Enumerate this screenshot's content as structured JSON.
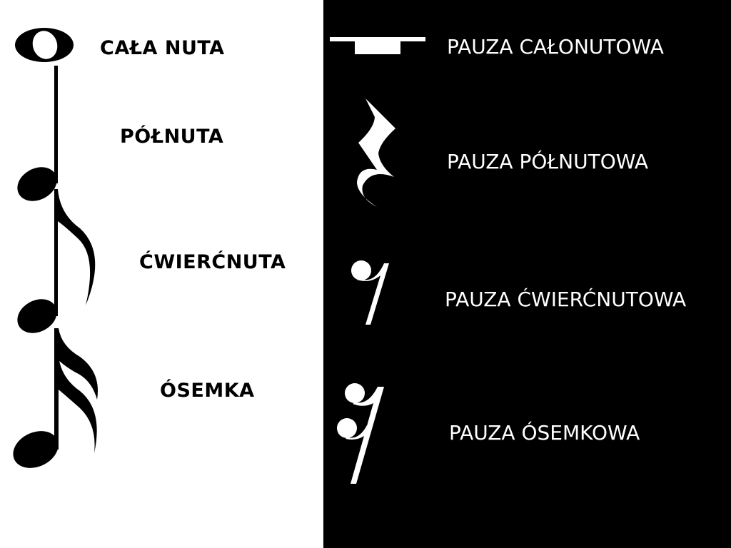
{
  "notes": [
    {
      "label": "CAŁA NUTA",
      "icon": "whole-note-icon"
    },
    {
      "label": "PÓŁNUTA",
      "icon": "half-note-icon"
    },
    {
      "label": "ĆWIERĆNUTA",
      "icon": "quarter-note-icon"
    },
    {
      "label": "ÓSEMKA",
      "icon": "eighth-note-icon"
    }
  ],
  "rests": [
    {
      "label": "PAUZA CAŁONUTOWA",
      "icon": "whole-rest-icon"
    },
    {
      "label": "PAUZA PÓŁNUTOWA",
      "icon": "half-rest-icon"
    },
    {
      "label": "PAUZA ĆWIERĆNUTOWA",
      "icon": "quarter-rest-icon"
    },
    {
      "label": "PAUZA ÓSEMKOWA",
      "icon": "eighth-rest-icon"
    }
  ],
  "colors": {
    "left_bg": "#ffffff",
    "right_bg": "#000000",
    "note_ink": "#000000",
    "rest_ink": "#ffffff"
  }
}
